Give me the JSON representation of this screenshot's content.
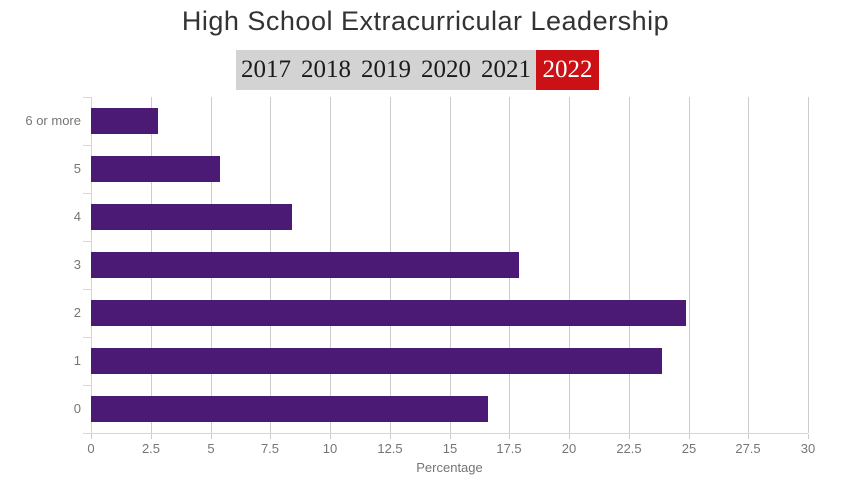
{
  "title": "High School Extracurricular Leadership",
  "tabs": {
    "items": [
      "2017",
      "2018",
      "2019",
      "2020",
      "2021",
      "2022"
    ],
    "active": "2022"
  },
  "colors": {
    "bar": "#4a1a75",
    "tab_background": "#d3d3d3",
    "tab_text": "#1b1b1b",
    "active_tab_background": "#cb1116",
    "active_tab_text": "#ffffff",
    "gridline": "#cccccc",
    "axis": "#c9d9ea",
    "tick_label": "#757575",
    "title_text": "#333333"
  },
  "chart_data": {
    "type": "bar",
    "orientation": "horizontal",
    "title": "High School Extracurricular Leadership",
    "series_name": "2022",
    "categories": [
      "6 or more",
      "5",
      "4",
      "3",
      "2",
      "1",
      "0"
    ],
    "values": [
      2.8,
      5.4,
      8.4,
      17.9,
      24.9,
      23.9,
      16.6
    ],
    "xlabel": "Percentage",
    "xlim": [
      0,
      30
    ],
    "xticks": [
      0,
      2.5,
      5,
      7.5,
      10,
      12.5,
      15,
      17.5,
      20,
      22.5,
      25,
      27.5,
      30
    ],
    "grid": true
  }
}
